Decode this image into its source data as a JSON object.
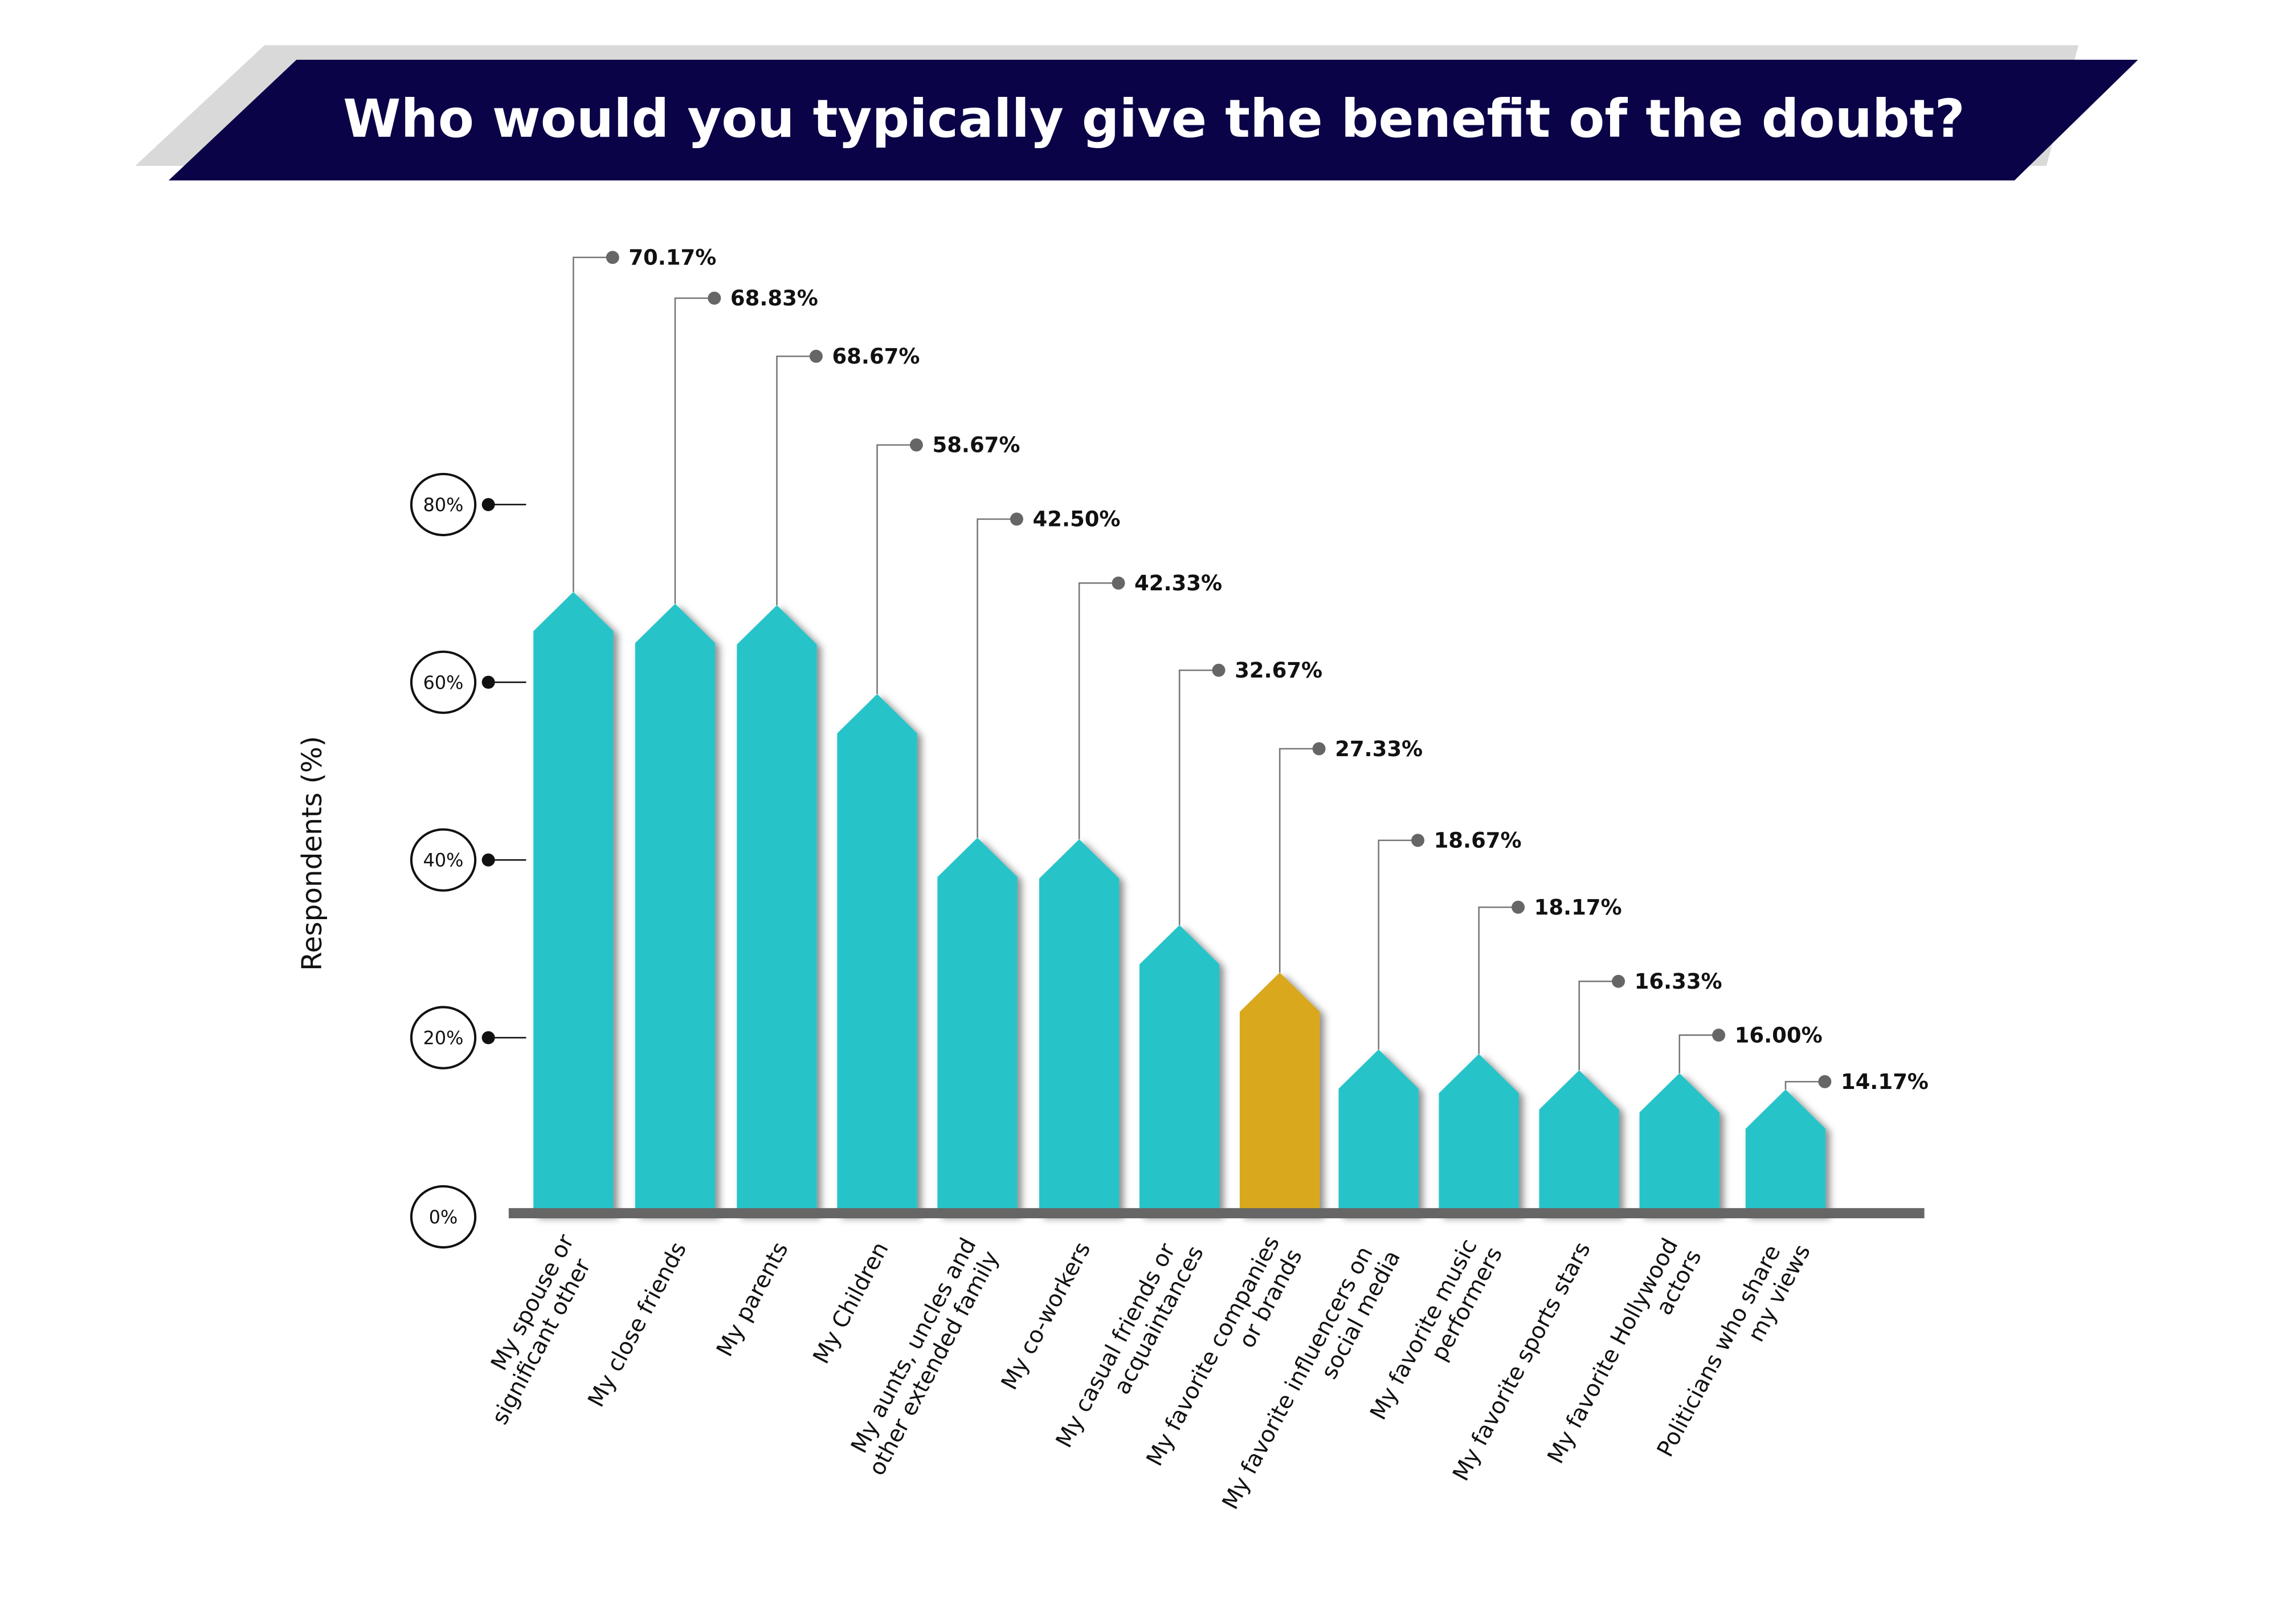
{
  "chart_data": {
    "type": "bar",
    "title": "Who would you typically give the benefit of the doubt?",
    "xlabel": "",
    "ylabel": "Respondents (%)",
    "ylim": [
      0,
      80
    ],
    "yticks": [
      "0%",
      "20%",
      "40%",
      "60%",
      "80%"
    ],
    "grid": false,
    "categories": [
      [
        "My spouse or",
        "significant other"
      ],
      [
        "My close friends"
      ],
      [
        "My parents"
      ],
      [
        "My Children"
      ],
      [
        "My aunts, uncles and",
        "other extended family"
      ],
      [
        "My co-workers"
      ],
      [
        "My casual friends or",
        "acquaintances"
      ],
      [
        "My favorite companies",
        "or brands"
      ],
      [
        "My favorite influencers on",
        "social media"
      ],
      [
        "My favorite music",
        "performers"
      ],
      [
        "My favorite sports stars"
      ],
      [
        "My favorite Hollywood",
        "actors"
      ],
      [
        "Politicians who share",
        "my views"
      ]
    ],
    "values": [
      70.17,
      68.83,
      68.67,
      58.67,
      42.5,
      42.33,
      32.67,
      27.33,
      18.67,
      18.17,
      16.33,
      16.0,
      14.17
    ],
    "value_labels": [
      "70.17%",
      "68.83%",
      "68.67%",
      "58.67%",
      "42.50%",
      "42.33%",
      "32.67%",
      "27.33%",
      "18.67%",
      "18.17%",
      "16.33%",
      "16.00%",
      "14.17%"
    ],
    "highlight_index": 7,
    "colors": {
      "bar": "#28c4c9",
      "highlight": "#d9a81a",
      "banner": "#0a0347",
      "banner_shadow": "#d9d9d9",
      "axis": "#666666"
    }
  }
}
